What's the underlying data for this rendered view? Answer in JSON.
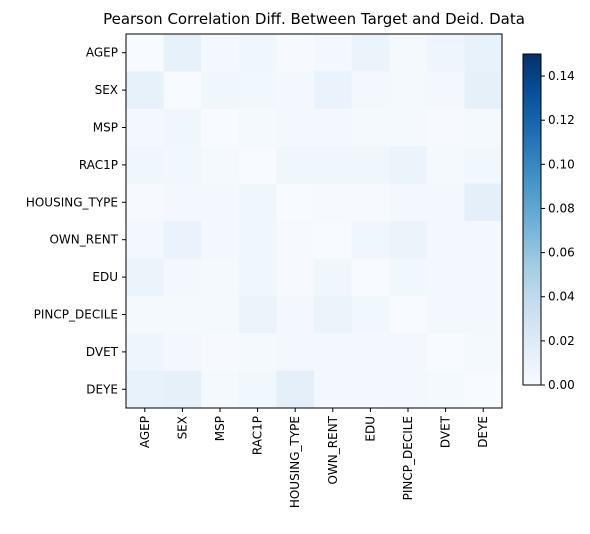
{
  "chart_data": {
    "type": "heatmap",
    "title": "Pearson Correlation Diff. Between Target and Deid. Data",
    "rows": [
      "AGEP",
      "SEX",
      "MSP",
      "RAC1P",
      "HOUSING_TYPE",
      "OWN_RENT",
      "EDU",
      "PINCP_DECILE",
      "DVET",
      "DEYE"
    ],
    "columns": [
      "AGEP",
      "SEX",
      "MSP",
      "RAC1P",
      "HOUSING_TYPE",
      "OWN_RENT",
      "EDU",
      "PINCP_DECILE",
      "DVET",
      "DEYE"
    ],
    "values": [
      [
        0.0,
        0.012,
        0.003,
        0.006,
        0.001,
        0.003,
        0.009,
        0.002,
        0.007,
        0.011
      ],
      [
        0.012,
        0.0,
        0.006,
        0.005,
        0.004,
        0.01,
        0.004,
        0.002,
        0.003,
        0.013
      ],
      [
        0.003,
        0.006,
        0.0,
        0.002,
        0.003,
        0.004,
        0.002,
        0.002,
        0.001,
        0.002
      ],
      [
        0.006,
        0.005,
        0.002,
        0.0,
        0.006,
        0.006,
        0.006,
        0.009,
        0.002,
        0.005
      ],
      [
        0.001,
        0.004,
        0.003,
        0.006,
        0.0,
        0.001,
        0.001,
        0.004,
        0.003,
        0.014
      ],
      [
        0.003,
        0.01,
        0.004,
        0.006,
        0.001,
        0.0,
        0.006,
        0.009,
        0.004,
        0.003
      ],
      [
        0.009,
        0.004,
        0.002,
        0.006,
        0.001,
        0.006,
        0.0,
        0.005,
        0.003,
        0.003
      ],
      [
        0.002,
        0.002,
        0.002,
        0.009,
        0.004,
        0.009,
        0.005,
        0.0,
        0.004,
        0.004
      ],
      [
        0.007,
        0.003,
        0.001,
        0.002,
        0.003,
        0.004,
        0.003,
        0.004,
        0.0,
        0.002
      ],
      [
        0.011,
        0.013,
        0.002,
        0.005,
        0.014,
        0.003,
        0.003,
        0.004,
        0.002,
        0.0
      ]
    ],
    "colorbar": {
      "range": [
        0,
        0.15
      ],
      "ticks": [
        0.0,
        0.02,
        0.04,
        0.06,
        0.08,
        0.1,
        0.12,
        0.14
      ],
      "tick_labels": [
        "0.00",
        "0.02",
        "0.04",
        "0.06",
        "0.08",
        "0.10",
        "0.12",
        "0.14"
      ]
    },
    "colormap": "Blues",
    "colormap_stops": [
      "#f7fbff",
      "#deebf7",
      "#c6dbef",
      "#9ecae1",
      "#6baed6",
      "#4292c6",
      "#2171b5",
      "#08519c",
      "#08306b"
    ],
    "xlabel": "",
    "ylabel": "",
    "grid": false
  }
}
